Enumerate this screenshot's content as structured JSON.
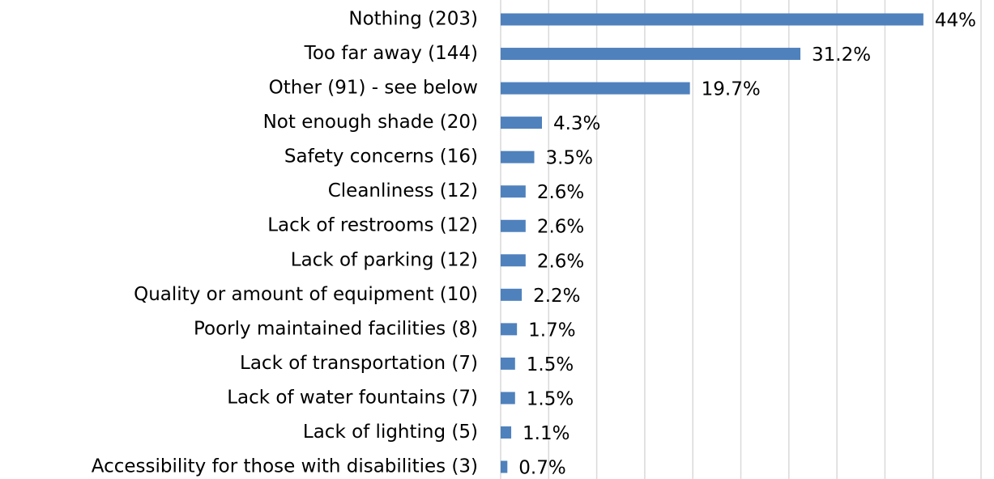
{
  "chart_data": {
    "type": "bar",
    "categories": [
      "Nothing (203)",
      "Too far away (144)",
      "Other (91) - see below",
      "Not enough shade (20)",
      "Safety concerns (16)",
      "Cleanliness (12)",
      "Lack of restrooms (12)",
      "Lack of parking (12)",
      "Quality or amount of equipment (10)",
      "Poorly maintained facilities (8)",
      "Lack of transportation (7)",
      "Lack of water fountains (7)",
      "Lack of lighting (5)",
      "Accessibility for those with disabilities (3)"
    ],
    "values": [
      44,
      31.2,
      19.7,
      4.3,
      3.5,
      2.6,
      2.6,
      2.6,
      2.2,
      1.7,
      1.5,
      1.5,
      1.1,
      0.7
    ],
    "value_labels": [
      "44%",
      "31.2%",
      "19.7%",
      "4.3%",
      "3.5%",
      "2.6%",
      "2.6%",
      "2.6%",
      "2.2%",
      "1.7%",
      "1.5%",
      "1.5%",
      "1.1%",
      "0.7%"
    ],
    "color": "#4f81bd",
    "xlim": [
      0,
      50
    ],
    "xticks": [
      0,
      5,
      10,
      15,
      20,
      25,
      30,
      35,
      40,
      45,
      50
    ],
    "grid": true
  }
}
